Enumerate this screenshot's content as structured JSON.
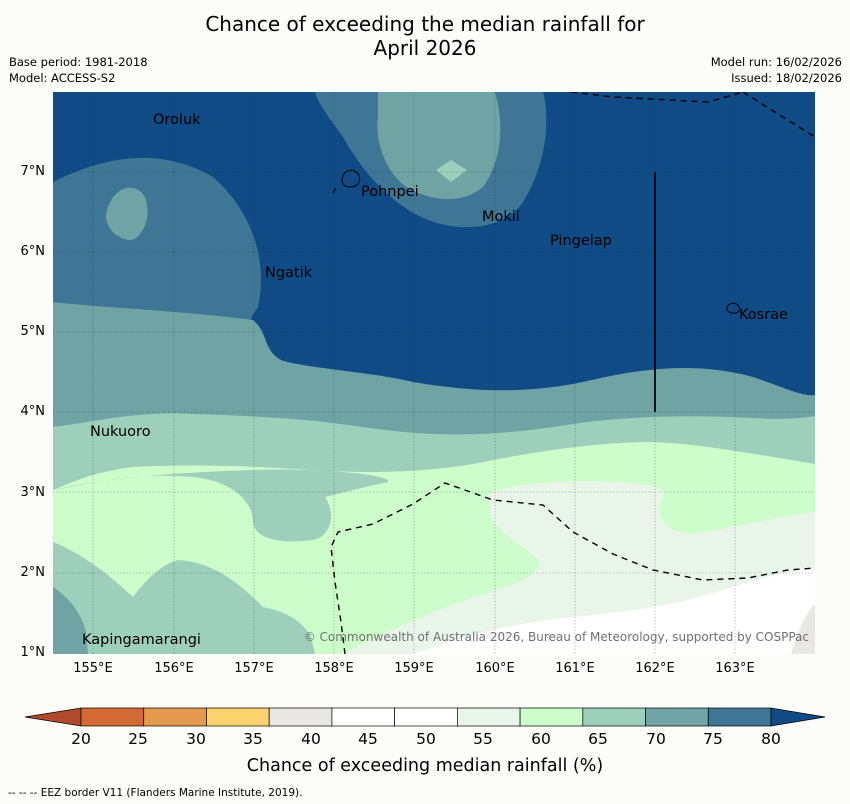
{
  "title": {
    "line1": "Chance of exceeding the median rainfall for",
    "line2": "April 2026"
  },
  "meta_left": {
    "base_period": "Base period: 1981-2018",
    "model": "Model: ACCESS-S2"
  },
  "meta_right": {
    "model_run": "Model run: 16/02/2026",
    "issued": "Issued: 18/02/2026"
  },
  "places": {
    "oroluk": "Oroluk",
    "pohnpei": "Pohnpei",
    "mokil": "Mokil",
    "pingelap": "Pingelap",
    "ngatik": "Ngatik",
    "kosrae": "Kosrae",
    "nukuoro": "Nukuoro",
    "kapingamarangi": "Kapingamarangi"
  },
  "credit": "© Commonwealth of Australia 2026, Bureau of Meteorology, supported by COSPPac",
  "lat_labels": [
    "7°N",
    "6°N",
    "5°N",
    "4°N",
    "3°N",
    "2°N",
    "1°N"
  ],
  "lon_labels": [
    "155°E",
    "156°E",
    "157°E",
    "158°E",
    "159°E",
    "160°E",
    "161°E",
    "162°E",
    "163°E"
  ],
  "colorbar": {
    "ticks": [
      "20",
      "25",
      "30",
      "35",
      "40",
      "45",
      "50",
      "55",
      "60",
      "65",
      "70",
      "75",
      "80"
    ],
    "colors": [
      "#b04a2a",
      "#d36a35",
      "#e49a4e",
      "#fbd36f",
      "#e9e7e3",
      "#ffffff",
      "#ffffff",
      "#eaf5e9",
      "#ccfdcb",
      "#9dcfba",
      "#6fa3a4",
      "#3f7595",
      "#114b86"
    ],
    "label": "Chance of exceeding median rainfall (%)"
  },
  "footnote": "--  --  -- EEZ border V11 (Flanders Marine Institute, 2019)."
}
